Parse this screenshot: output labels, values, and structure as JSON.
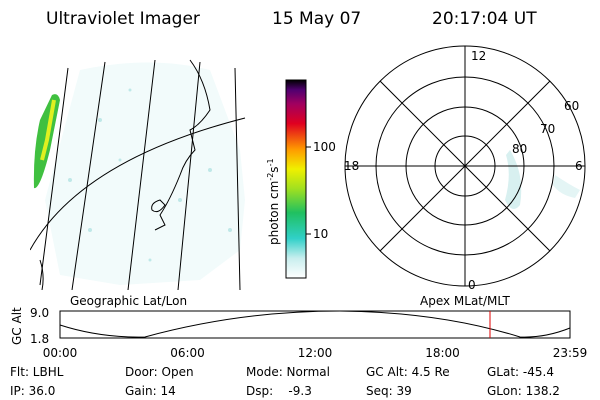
{
  "header": {
    "title": "Ultraviolet Imager",
    "date": "15 May 07",
    "time": "20:17:04 UT"
  },
  "geographic_panel": {
    "label": "Geographic Lat/Lon"
  },
  "colorbar": {
    "label": "photon cm",
    "exp1": "-2",
    "unit2": "s",
    "exp2": "-1",
    "ticks": [
      "100",
      "10"
    ]
  },
  "polar_panel": {
    "label": "Apex MLat/MLT",
    "mlt_labels": [
      "12",
      "18",
      "6",
      "0"
    ],
    "lat_labels": [
      "60",
      "70",
      "80"
    ]
  },
  "altitude_plot": {
    "ylabel": "GC Alt",
    "yticks": [
      "9.0",
      "1.8"
    ],
    "xticks": [
      "00:00",
      "06:00",
      "12:00",
      "18:00",
      "23:59"
    ]
  },
  "status": {
    "rows": [
      [
        "Flt: LBHL",
        "Door: Open",
        "Mode: Normal",
        "GC Alt: 4.5 Re",
        "GLat: -45.4"
      ],
      [
        "IP: 36.0",
        "Gain: 14",
        "Dsp:    -9.3",
        "Seq: 39",
        "GLon: 138.2"
      ]
    ]
  }
}
